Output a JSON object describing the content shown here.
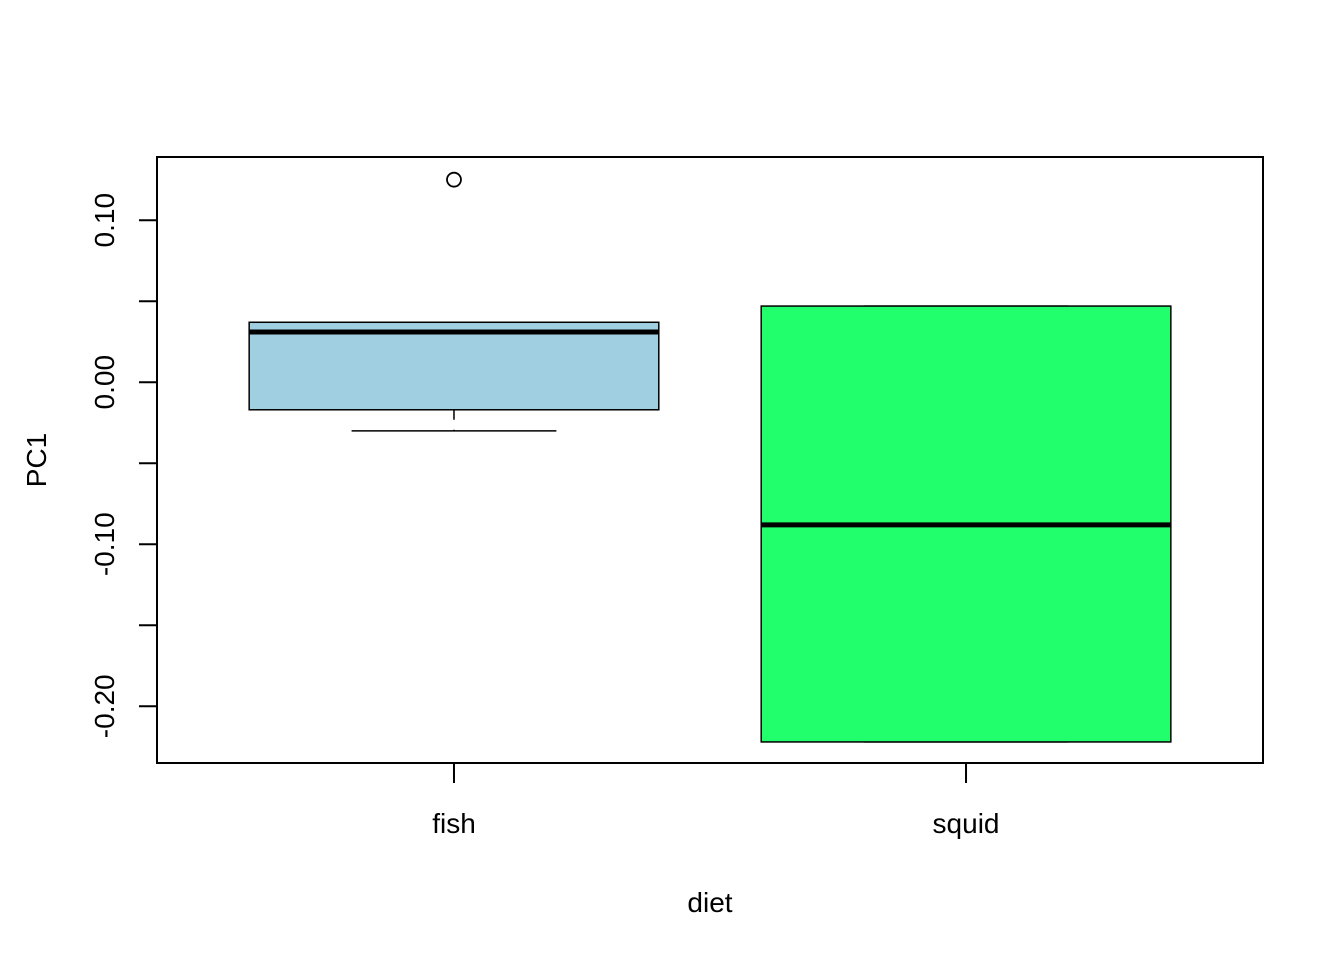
{
  "chart_data": {
    "type": "boxplot",
    "title": "",
    "xlabel": "diet",
    "ylabel": "PC1",
    "categories": [
      "fish",
      "squid"
    ],
    "ylim": [
      -0.235,
      0.139
    ],
    "y_ticks": [
      0.1,
      0.05,
      0.0,
      -0.05,
      -0.1,
      -0.15,
      -0.2
    ],
    "y_tick_labels": [
      "0.10",
      "",
      "0.00",
      "",
      "-0.10",
      "",
      "-0.20"
    ],
    "boxes": [
      {
        "category": "fish",
        "color": "#9fcfe0",
        "whisker_low": -0.03,
        "q1": -0.017,
        "median": 0.031,
        "q3": 0.037,
        "whisker_high": 0.037,
        "outliers": [
          0.125
        ]
      },
      {
        "category": "squid",
        "color": "#21ff6d",
        "whisker_low": -0.222,
        "q1": -0.222,
        "median": -0.088,
        "q3": 0.047,
        "whisker_high": 0.047,
        "outliers": []
      }
    ],
    "grid": false,
    "legend": "none"
  }
}
